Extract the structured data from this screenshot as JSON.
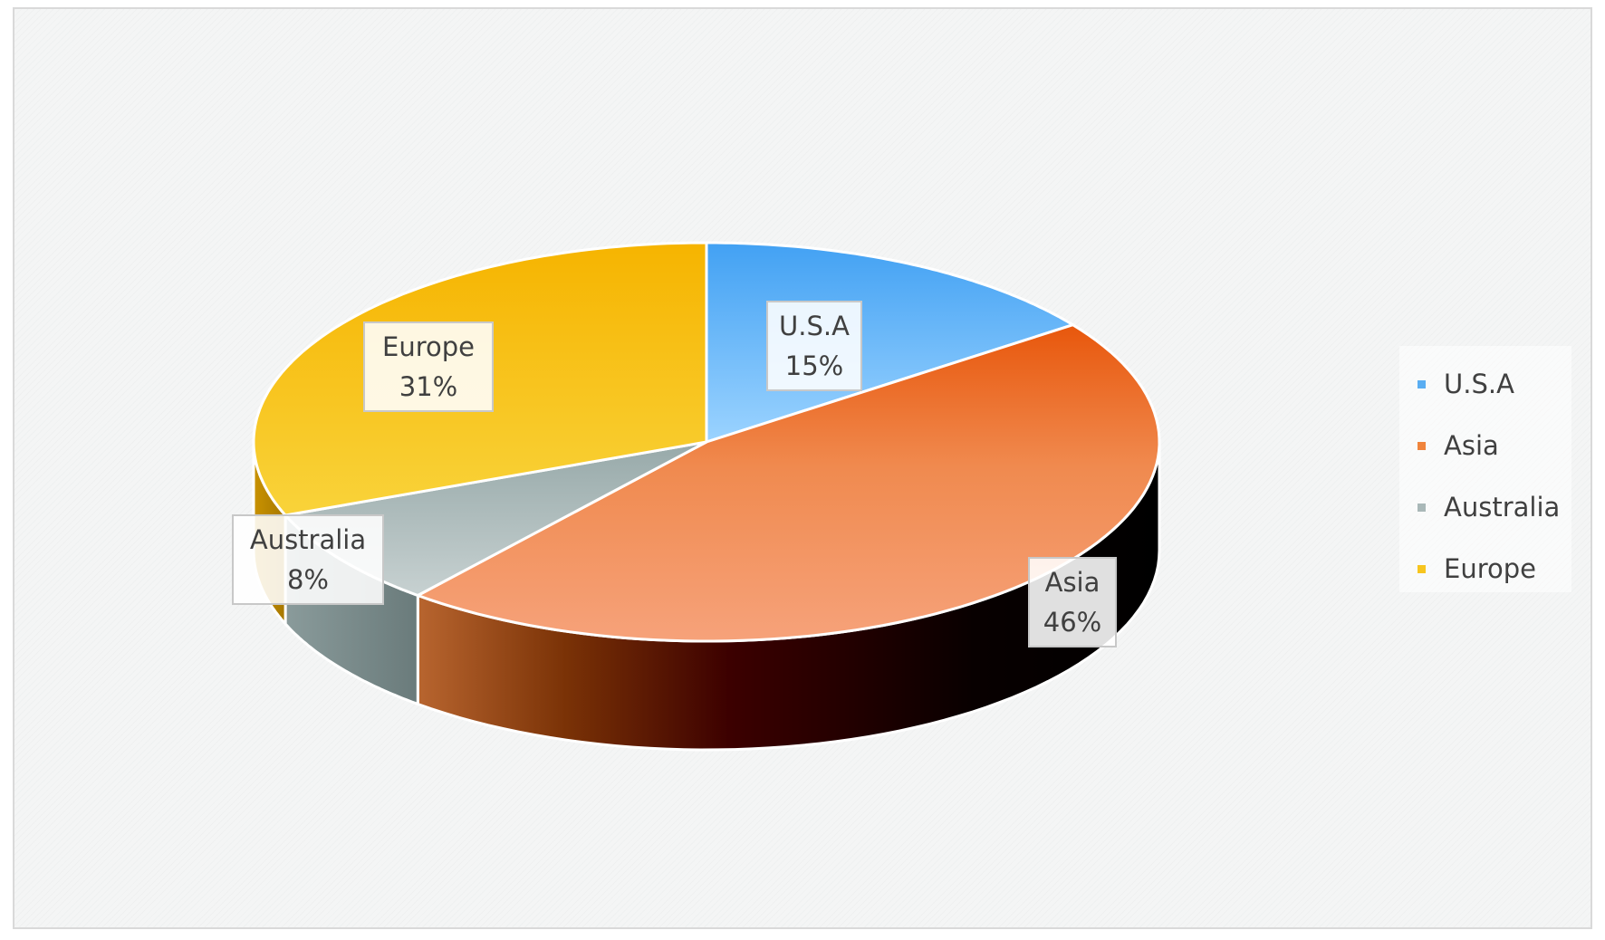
{
  "chart_data": {
    "type": "pie",
    "style": "3d",
    "categories": [
      "U.S.A",
      "Asia",
      "Australia",
      "Europe"
    ],
    "values": [
      15,
      46,
      8,
      31
    ],
    "labels": [
      "15%",
      "46%",
      "8%",
      "31%"
    ],
    "colors": [
      "#5aaef2",
      "#f0843c",
      "#a9b8b8",
      "#f7c51f"
    ],
    "legend_position": "right",
    "title": "",
    "xlabel": "",
    "ylabel": ""
  }
}
